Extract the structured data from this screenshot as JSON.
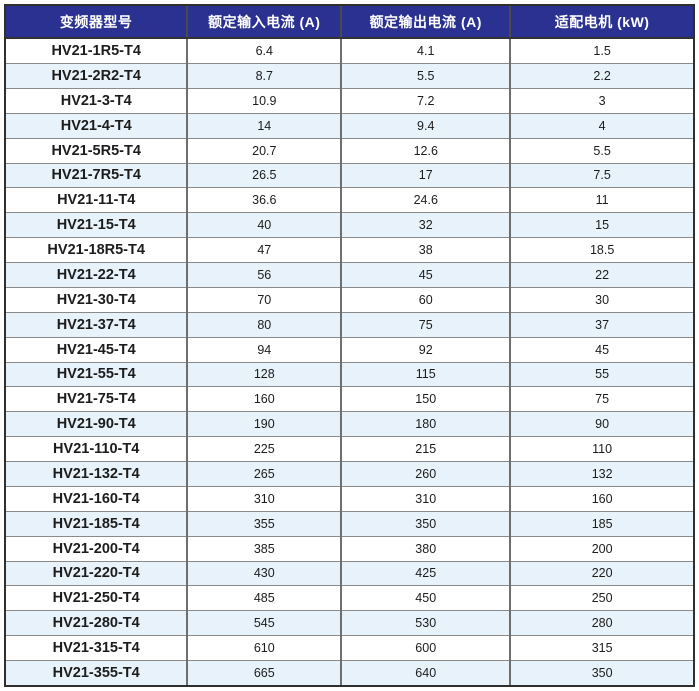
{
  "table": {
    "columns": [
      {
        "label": "变频器型号"
      },
      {
        "label": "额定输入电流 (A)"
      },
      {
        "label": "额定输出电流 (A)"
      },
      {
        "label": "适配电机 (kW)"
      }
    ],
    "rows": [
      [
        "HV21-1R5-T4",
        "6.4",
        "4.1",
        "1.5"
      ],
      [
        "HV21-2R2-T4",
        "8.7",
        "5.5",
        "2.2"
      ],
      [
        "HV21-3-T4",
        "10.9",
        "7.2",
        "3"
      ],
      [
        "HV21-4-T4",
        "14",
        "9.4",
        "4"
      ],
      [
        "HV21-5R5-T4",
        "20.7",
        "12.6",
        "5.5"
      ],
      [
        "HV21-7R5-T4",
        "26.5",
        "17",
        "7.5"
      ],
      [
        "HV21-11-T4",
        "36.6",
        "24.6",
        "11"
      ],
      [
        "HV21-15-T4",
        "40",
        "32",
        "15"
      ],
      [
        "HV21-18R5-T4",
        "47",
        "38",
        "18.5"
      ],
      [
        "HV21-22-T4",
        "56",
        "45",
        "22"
      ],
      [
        "HV21-30-T4",
        "70",
        "60",
        "30"
      ],
      [
        "HV21-37-T4",
        "80",
        "75",
        "37"
      ],
      [
        "HV21-45-T4",
        "94",
        "92",
        "45"
      ],
      [
        "HV21-55-T4",
        "128",
        "115",
        "55"
      ],
      [
        "HV21-75-T4",
        "160",
        "150",
        "75"
      ],
      [
        "HV21-90-T4",
        "190",
        "180",
        "90"
      ],
      [
        "HV21-110-T4",
        "225",
        "215",
        "110"
      ],
      [
        "HV21-132-T4",
        "265",
        "260",
        "132"
      ],
      [
        "HV21-160-T4",
        "310",
        "310",
        "160"
      ],
      [
        "HV21-185-T4",
        "355",
        "350",
        "185"
      ],
      [
        "HV21-200-T4",
        "385",
        "380",
        "200"
      ],
      [
        "HV21-220-T4",
        "430",
        "425",
        "220"
      ],
      [
        "HV21-250-T4",
        "485",
        "450",
        "250"
      ],
      [
        "HV21-280-T4",
        "545",
        "530",
        "280"
      ],
      [
        "HV21-315-T4",
        "610",
        "600",
        "315"
      ],
      [
        "HV21-355-T4",
        "665",
        "640",
        "350"
      ]
    ]
  },
  "colors": {
    "header_bg": "#2a3190",
    "header_text": "#ffffff",
    "stripe_bg": "#e8f2fa",
    "row_bg": "#ffffff",
    "outer_border": "#2f2f2f",
    "body_text": "#1c1c1c"
  }
}
